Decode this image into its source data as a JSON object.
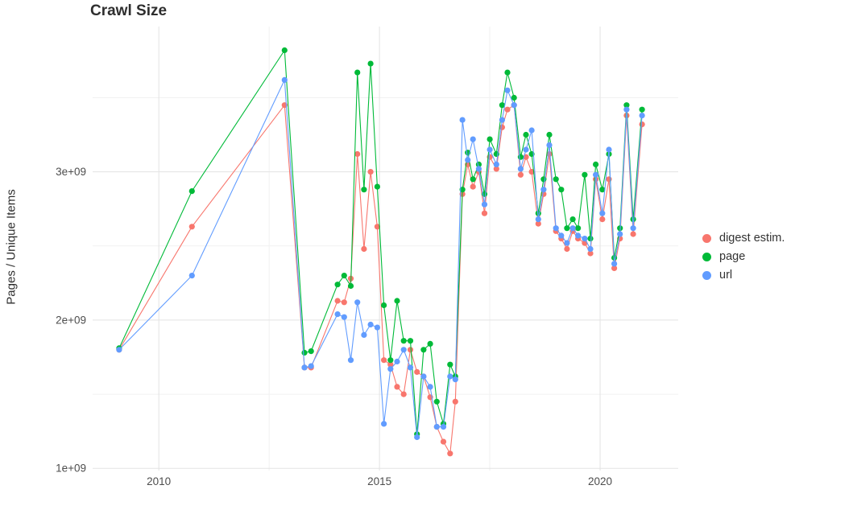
{
  "title": "Crawl Size",
  "ylabel": "Pages / Unique Items",
  "legend": {
    "items": [
      {
        "label": "digest estim.",
        "color": "#F8766D"
      },
      {
        "label": "page",
        "color": "#00BA38"
      },
      {
        "label": "url",
        "color": "#619CFF"
      }
    ]
  },
  "chart_data": {
    "type": "line",
    "title": "Crawl Size",
    "xlabel": "",
    "ylabel": "Pages / Unique Items",
    "grid": true,
    "legend_position": "right",
    "xlim": [
      2008.5,
      2021.77
    ],
    "ylim": [
      985000000.0,
      3980000000.0
    ],
    "x_ticks": [
      2010,
      2015,
      2020
    ],
    "x_tick_labels": [
      "2010",
      "2015",
      "2020"
    ],
    "y_ticks": [
      1000000000.0,
      2000000000.0,
      3000000000.0
    ],
    "y_tick_labels": [
      "1e+09",
      "2e+09",
      "3e+09"
    ],
    "x_minor_gridlines": [
      2012.5,
      2017.5
    ],
    "y_minor_gridlines": [
      1500000000.0,
      2500000000.0,
      3500000000.0
    ],
    "x": [
      2009.1,
      2010.75,
      2012.85,
      2013.3,
      2013.45,
      2014.05,
      2014.2,
      2014.35,
      2014.5,
      2014.65,
      2014.8,
      2014.95,
      2015.1,
      2015.25,
      2015.4,
      2015.55,
      2015.7,
      2015.85,
      2016.0,
      2016.15,
      2016.3,
      2016.45,
      2016.6,
      2016.72,
      2016.88,
      2017.0,
      2017.12,
      2017.25,
      2017.38,
      2017.5,
      2017.65,
      2017.78,
      2017.9,
      2018.05,
      2018.2,
      2018.32,
      2018.45,
      2018.6,
      2018.72,
      2018.85,
      2019.0,
      2019.12,
      2019.25,
      2019.38,
      2019.5,
      2019.65,
      2019.78,
      2019.9,
      2020.05,
      2020.2,
      2020.32,
      2020.45,
      2020.6,
      2020.75,
      2020.95
    ],
    "series": [
      {
        "name": "digest estim.",
        "color": "#F8766D",
        "values": [
          1800000000.0,
          2630000000.0,
          3450000000.0,
          1680000000.0,
          1680000000.0,
          2130000000.0,
          2120000000.0,
          2280000000.0,
          3120000000.0,
          2480000000.0,
          3000000000.0,
          2630000000.0,
          1730000000.0,
          1700000000.0,
          1550000000.0,
          1500000000.0,
          1800000000.0,
          1650000000.0,
          1620000000.0,
          1480000000.0,
          1280000000.0,
          1180000000.0,
          1100000000.0,
          1450000000.0,
          2850000000.0,
          3050000000.0,
          2900000000.0,
          3000000000.0,
          2720000000.0,
          3100000000.0,
          3020000000.0,
          3300000000.0,
          3420000000.0,
          3450000000.0,
          2980000000.0,
          3100000000.0,
          3000000000.0,
          2650000000.0,
          2850000000.0,
          3120000000.0,
          2600000000.0,
          2550000000.0,
          2480000000.0,
          2600000000.0,
          2550000000.0,
          2520000000.0,
          2450000000.0,
          2950000000.0,
          2680000000.0,
          2950000000.0,
          2350000000.0,
          2550000000.0,
          3380000000.0,
          2580000000.0,
          3320000000.0
        ]
      },
      {
        "name": "page",
        "color": "#00BA38",
        "values": [
          1810000000.0,
          2870000000.0,
          3820000000.0,
          1780000000.0,
          1790000000.0,
          2240000000.0,
          2300000000.0,
          2230000000.0,
          3670000000.0,
          2880000000.0,
          3730000000.0,
          2900000000.0,
          2100000000.0,
          1730000000.0,
          2130000000.0,
          1860000000.0,
          1860000000.0,
          1230000000.0,
          1800000000.0,
          1840000000.0,
          1450000000.0,
          1300000000.0,
          1700000000.0,
          1620000000.0,
          2880000000.0,
          3130000000.0,
          2950000000.0,
          3050000000.0,
          2850000000.0,
          3220000000.0,
          3120000000.0,
          3450000000.0,
          3670000000.0,
          3500000000.0,
          3100000000.0,
          3250000000.0,
          3120000000.0,
          2720000000.0,
          2950000000.0,
          3250000000.0,
          2950000000.0,
          2880000000.0,
          2620000000.0,
          2680000000.0,
          2620000000.0,
          2980000000.0,
          2550000000.0,
          3050000000.0,
          2880000000.0,
          3120000000.0,
          2420000000.0,
          2620000000.0,
          3450000000.0,
          2680000000.0,
          3420000000.0
        ]
      },
      {
        "name": "url",
        "color": "#619CFF",
        "values": [
          1800000000.0,
          2300000000.0,
          3620000000.0,
          1680000000.0,
          1690000000.0,
          2040000000.0,
          2020000000.0,
          1730000000.0,
          2120000000.0,
          1900000000.0,
          1970000000.0,
          1950000000.0,
          1300000000.0,
          1670000000.0,
          1720000000.0,
          1800000000.0,
          1680000000.0,
          1210000000.0,
          1620000000.0,
          1550000000.0,
          1280000000.0,
          1280000000.0,
          1620000000.0,
          1600000000.0,
          3350000000.0,
          3080000000.0,
          3220000000.0,
          3020000000.0,
          2780000000.0,
          3150000000.0,
          3050000000.0,
          3350000000.0,
          3550000000.0,
          3450000000.0,
          3020000000.0,
          3150000000.0,
          3280000000.0,
          2680000000.0,
          2880000000.0,
          3180000000.0,
          2620000000.0,
          2570000000.0,
          2520000000.0,
          2620000000.0,
          2570000000.0,
          2550000000.0,
          2480000000.0,
          2980000000.0,
          2720000000.0,
          3150000000.0,
          2380000000.0,
          2580000000.0,
          3420000000.0,
          2620000000.0,
          3380000000.0
        ]
      }
    ]
  }
}
